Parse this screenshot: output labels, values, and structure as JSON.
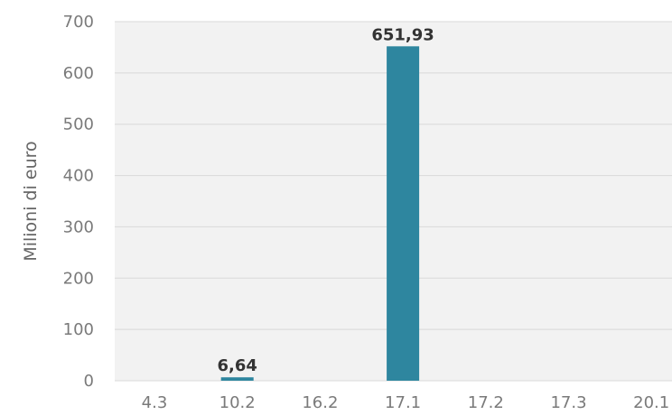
{
  "chart_data": {
    "type": "bar",
    "categories": [
      "4.3",
      "10.2",
      "16.2",
      "17.1",
      "17.2",
      "17.3",
      "20.1"
    ],
    "values": [
      0,
      6.64,
      0,
      651.93,
      0,
      0,
      0
    ],
    "data_labels": [
      "",
      "6,64",
      "",
      "651,93",
      "",
      "",
      ""
    ],
    "title": "",
    "xlabel": "",
    "ylabel": "Milioni di euro",
    "ylim": [
      0,
      700
    ],
    "yticks": [
      0,
      100,
      200,
      300,
      400,
      500,
      600,
      700
    ],
    "grid": true,
    "legend": "none",
    "colors": {
      "bar": "#2e869f",
      "plot_background": "#f2f2f2",
      "gridline": "#d9d9d9",
      "tick_text": "#7a7a7a",
      "axis_title": "#666666",
      "data_label": "#333333"
    }
  }
}
